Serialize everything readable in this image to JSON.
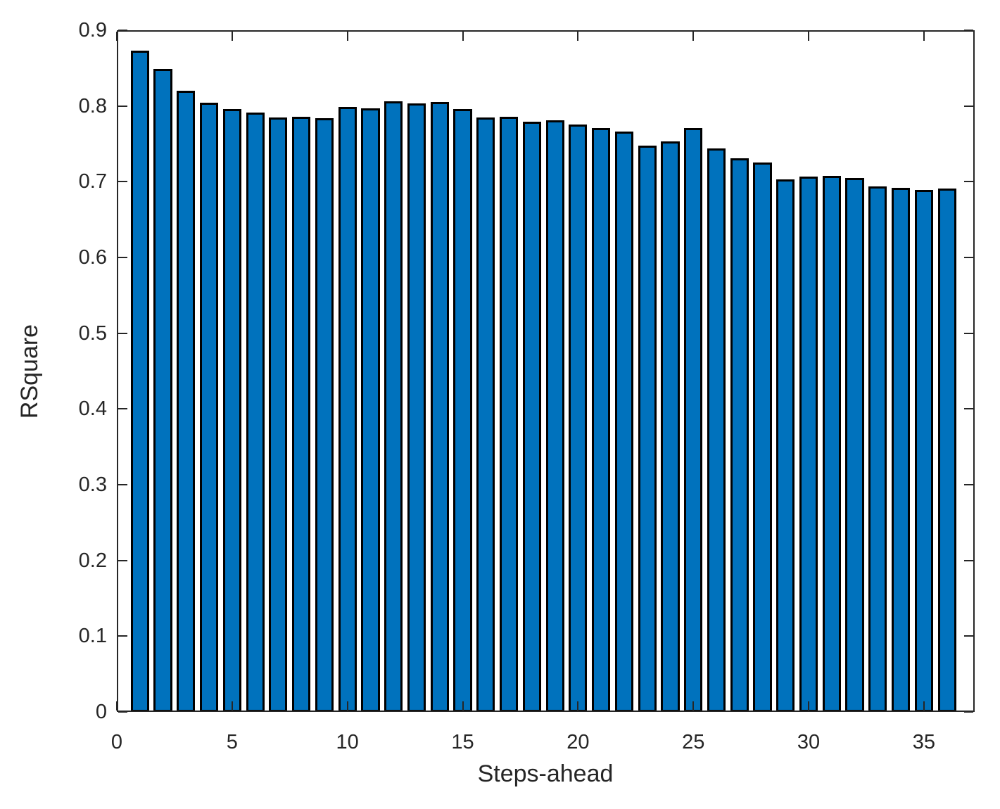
{
  "chart_data": {
    "type": "bar",
    "title": "",
    "xlabel": "Steps-ahead",
    "ylabel": "RSquare",
    "x": [
      1,
      2,
      3,
      4,
      5,
      6,
      7,
      8,
      9,
      10,
      11,
      12,
      13,
      14,
      15,
      16,
      17,
      18,
      19,
      20,
      21,
      22,
      23,
      24,
      25,
      26,
      27,
      28,
      29,
      30,
      31,
      32,
      33,
      34,
      35,
      36
    ],
    "values": [
      0.873,
      0.849,
      0.82,
      0.804,
      0.796,
      0.791,
      0.785,
      0.786,
      0.784,
      0.799,
      0.797,
      0.806,
      0.803,
      0.805,
      0.796,
      0.785,
      0.786,
      0.779,
      0.781,
      0.776,
      0.771,
      0.766,
      0.748,
      0.753,
      0.771,
      0.744,
      0.731,
      0.725,
      0.703,
      0.707,
      0.708,
      0.705,
      0.694,
      0.692,
      0.689,
      0.691
    ],
    "xlim": [
      0,
      37.2
    ],
    "ylim": [
      0,
      0.9
    ],
    "xticks": [
      0,
      5,
      10,
      15,
      20,
      25,
      30,
      35
    ],
    "xtick_labels": [
      "0",
      "5",
      "10",
      "15",
      "20",
      "25",
      "30",
      "35"
    ],
    "yticks": [
      0,
      0.1,
      0.2,
      0.3,
      0.4,
      0.5,
      0.6,
      0.7,
      0.8,
      0.9
    ],
    "ytick_labels": [
      "0",
      "0.1",
      "0.2",
      "0.3",
      "0.4",
      "0.5",
      "0.6",
      "0.7",
      "0.8",
      "0.9"
    ],
    "bar_width_units": 0.8,
    "bar_color": "#0072BD",
    "bar_edge_color": "#000000",
    "axis_color": "#262626",
    "text_color": "#262626",
    "grid": false,
    "legend": null,
    "tick_direction": "in",
    "box": true
  }
}
